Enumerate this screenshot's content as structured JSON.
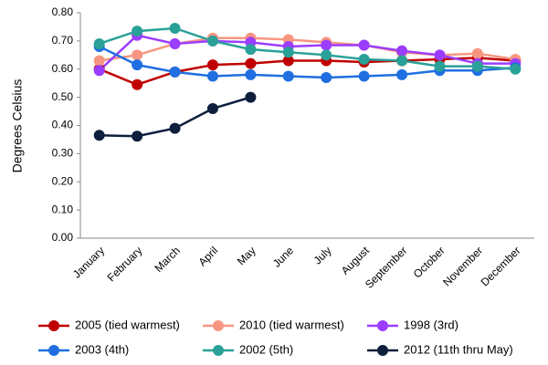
{
  "chart_data": {
    "type": "line",
    "y_label": "Degrees Celsius",
    "categories": [
      "January",
      "February",
      "March",
      "April",
      "May",
      "June",
      "July",
      "August",
      "September",
      "October",
      "November",
      "December"
    ],
    "series": [
      {
        "name": "2005 (tied warmest)",
        "color": "#c00000",
        "values": [
          0.6,
          0.545,
          0.59,
          0.615,
          0.62,
          0.63,
          0.63,
          0.625,
          0.63,
          0.635,
          0.64,
          0.63
        ]
      },
      {
        "name": "2010 (tied warmest)",
        "color": "#f79680",
        "values": [
          0.63,
          0.65,
          0.69,
          0.71,
          0.71,
          0.705,
          0.695,
          0.685,
          0.66,
          0.65,
          0.655,
          0.635
        ]
      },
      {
        "name": "1998 (3rd)",
        "color": "#9b3dff",
        "values": [
          0.595,
          0.72,
          0.69,
          0.7,
          0.695,
          0.68,
          0.685,
          0.685,
          0.665,
          0.65,
          0.62,
          0.62
        ]
      },
      {
        "name": "2003 (4th)",
        "color": "#1f6fe0",
        "values": [
          0.68,
          0.615,
          0.59,
          0.575,
          0.58,
          0.575,
          0.57,
          0.575,
          0.58,
          0.595,
          0.595,
          0.605
        ]
      },
      {
        "name": "2002 (5th)",
        "color": "#2aa198",
        "values": [
          0.69,
          0.735,
          0.745,
          0.7,
          0.67,
          0.66,
          0.65,
          0.635,
          0.63,
          0.61,
          0.61,
          0.6
        ]
      },
      {
        "name": "2012 (11th thru May)",
        "color": "#0d1f3c",
        "values": [
          0.365,
          0.362,
          0.39,
          0.46,
          0.5,
          null,
          null,
          null,
          null,
          null,
          null,
          null
        ]
      }
    ],
    "ylim": [
      0,
      0.8
    ],
    "yticks": [
      {
        "value": 0,
        "label": "0.00"
      },
      {
        "value": 0.1,
        "label": "0.10"
      },
      {
        "value": 0.2,
        "label": "0.20"
      },
      {
        "value": 0.3,
        "label": "0.30"
      },
      {
        "value": 0.4,
        "label": "0.40"
      },
      {
        "value": 0.5,
        "label": "0.50"
      },
      {
        "value": 0.6,
        "label": "0.60"
      },
      {
        "value": 0.7,
        "label": "0.70"
      },
      {
        "value": 0.8,
        "label": "0.80"
      }
    ],
    "legend": "bottom"
  }
}
